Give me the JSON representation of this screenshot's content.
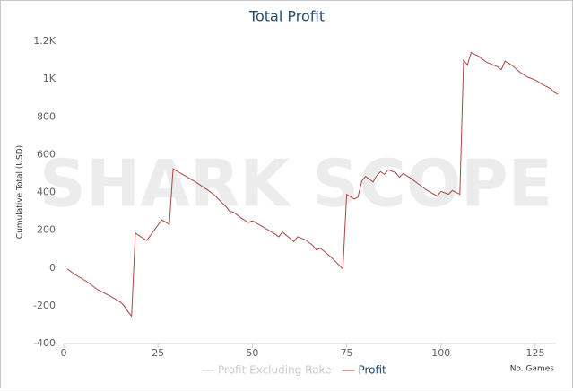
{
  "chart_data": {
    "type": "line",
    "title": "Total Profit",
    "watermark": "SHARK SCOPE",
    "y_label": "Cumulative Total (USD)",
    "x_label": "No. Games",
    "xlim": [
      0,
      130
    ],
    "xticks": [
      0,
      25,
      50,
      75,
      100,
      125
    ],
    "ylim": [
      -400,
      1200
    ],
    "yticks": [
      -400,
      -200,
      0,
      200,
      400,
      600,
      800,
      {
        "value": 1000,
        "label": "1K"
      },
      {
        "value": 1200,
        "label": "1.2K"
      }
    ],
    "grid": false,
    "legend_position": "bottom",
    "hidden_series": [
      {
        "name": "Profit Excluding Rake",
        "color": "#cccccc"
      }
    ],
    "series": [
      {
        "name": "Profit",
        "color": "#aa4643",
        "x": [
          1,
          3,
          6,
          9,
          12,
          15,
          16,
          17,
          18,
          19,
          22,
          24,
          26,
          28,
          29,
          32,
          35,
          38,
          40,
          43,
          44,
          45,
          47,
          49,
          50,
          53,
          56,
          57,
          58,
          61,
          62,
          64,
          66,
          67,
          68,
          71,
          74,
          75,
          77,
          78,
          79,
          80,
          82,
          83,
          84,
          85,
          86,
          88,
          89,
          90,
          92,
          94,
          96,
          99,
          100,
          102,
          103,
          105,
          106,
          107,
          108,
          110,
          112,
          115,
          116,
          117,
          119,
          121,
          123,
          125,
          127,
          129,
          130,
          131
        ],
        "values": [
          -5,
          -35,
          -70,
          -115,
          -145,
          -180,
          -200,
          -230,
          -255,
          185,
          145,
          200,
          255,
          230,
          525,
          490,
          455,
          415,
          385,
          325,
          300,
          295,
          265,
          240,
          250,
          215,
          180,
          165,
          190,
          140,
          165,
          150,
          120,
          95,
          105,
          55,
          -5,
          390,
          365,
          375,
          460,
          485,
          455,
          490,
          510,
          495,
          520,
          505,
          480,
          500,
          475,
          445,
          415,
          380,
          405,
          390,
          410,
          390,
          1100,
          1075,
          1140,
          1120,
          1090,
          1065,
          1050,
          1095,
          1070,
          1035,
          1010,
          995,
          970,
          950,
          930,
          920
        ]
      }
    ]
  }
}
